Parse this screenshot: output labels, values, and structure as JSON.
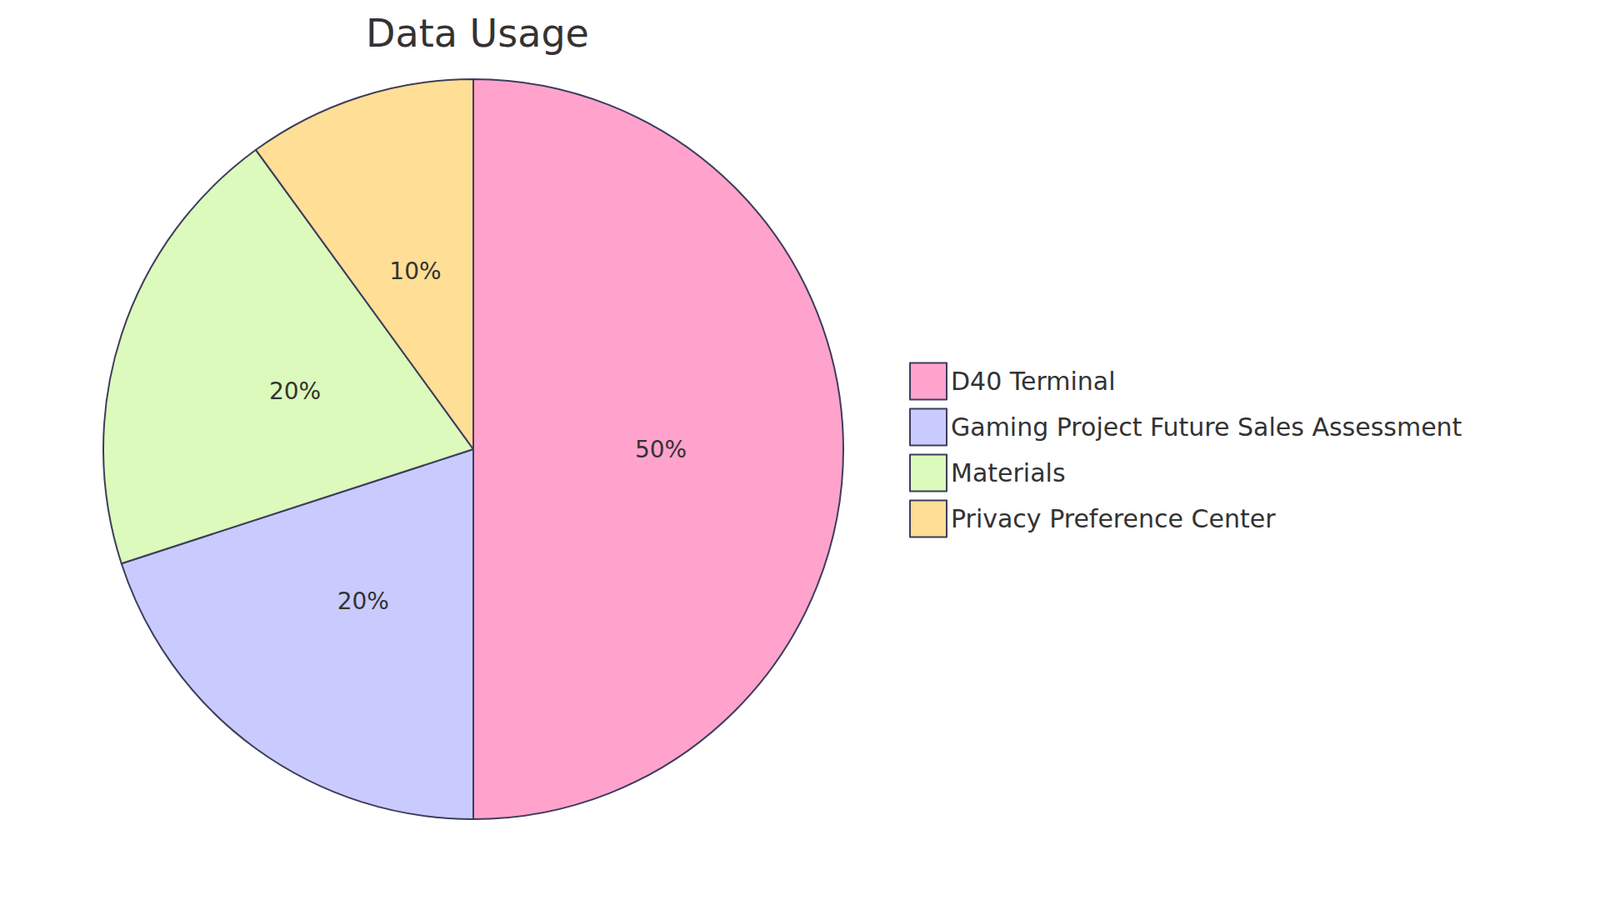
{
  "chart_data": {
    "type": "pie",
    "title": "Data Usage",
    "categories": [
      "D40 Terminal",
      "Gaming Project Future Sales Assessment",
      "Materials",
      "Privacy Preference Center"
    ],
    "values": [
      50,
      20,
      20,
      10
    ],
    "value_labels": [
      "50%",
      "20%",
      "20%",
      "10%"
    ],
    "colors": [
      "#FFA3CD",
      "#C9CAFE",
      "#DBFABB",
      "#FFDE95"
    ],
    "data_labels": true,
    "legend": "right"
  }
}
